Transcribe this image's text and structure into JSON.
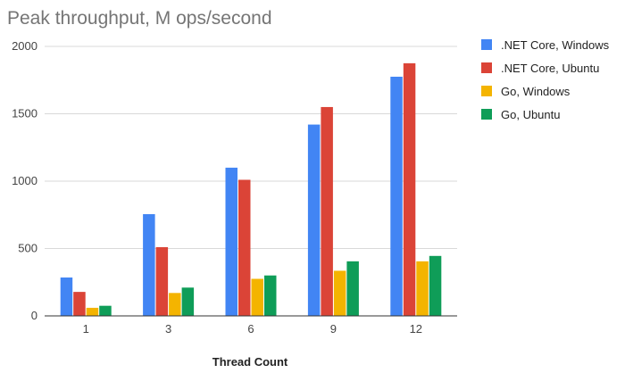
{
  "chart_data": {
    "type": "bar",
    "title": "Peak throughput, M ops/second",
    "xlabel": "Thread Count",
    "ylabel": "",
    "categories": [
      "1",
      "3",
      "6",
      "9",
      "12"
    ],
    "ylim": [
      0,
      2000
    ],
    "yticks": [
      "0",
      "500",
      "1000",
      "1500",
      "2000"
    ],
    "grid": true,
    "legend_position": "right",
    "series": [
      {
        "name": ".NET Core, Windows",
        "color": "#4285F4",
        "values": [
          285,
          755,
          1100,
          1420,
          1775
        ]
      },
      {
        "name": ".NET Core, Ubuntu",
        "color": "#DB4437",
        "values": [
          178,
          510,
          1010,
          1550,
          1875
        ]
      },
      {
        "name": "Go, Windows",
        "color": "#F4B400",
        "values": [
          60,
          170,
          275,
          335,
          405
        ]
      },
      {
        "name": "Go, Ubuntu",
        "color": "#0F9D58",
        "values": [
          75,
          210,
          300,
          405,
          445
        ]
      }
    ]
  }
}
